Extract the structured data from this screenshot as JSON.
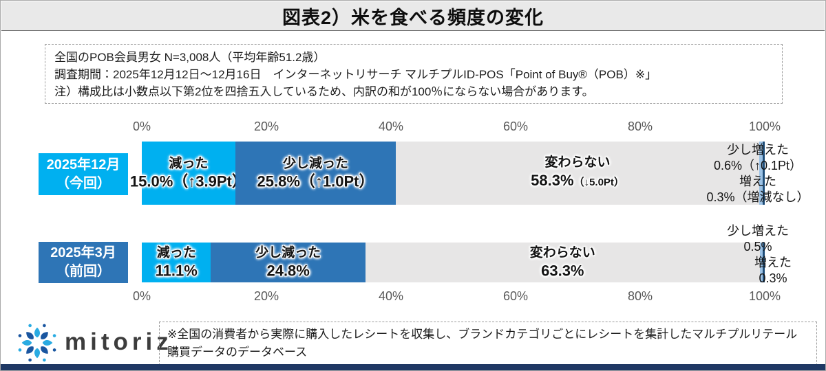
{
  "title": "図表2）米を食べる頻度の変化",
  "note_box": {
    "lines": [
      "全国のPOB会員男女 N=3,008人（平均年齢51.2歳）",
      "調査期間：2025年12月12日～12月16日　インターネットリサーチ マルチプルID-POS「Point of Buy®（POB）※」",
      "注）構成比は小数点以下第2位を四捨五入しているため、内訳の和が100％にならない場合があります。"
    ]
  },
  "chart_data": {
    "type": "bar",
    "stacked": true,
    "orientation": "horizontal",
    "title": "米を食べる頻度の変化",
    "xlim": [
      0,
      100
    ],
    "axis_ticks": [
      "0%",
      "20%",
      "40%",
      "60%",
      "80%",
      "100%"
    ],
    "categories": [
      "減った",
      "少し減った",
      "変わらない",
      "少し増えた",
      "増えた"
    ],
    "palette": {
      "減った": "#00B0F0",
      "少し減った": "#2E75B6",
      "変わらない": "#E7E6E6",
      "少し増えた": "#9DC3E6",
      "増えた": "#1F4E79"
    },
    "rows": [
      {
        "label_line1": "2025年12月",
        "label_line2": "（今回）",
        "label_box_color": "#00B0F0",
        "segments": [
          {
            "key": "hetta",
            "name": "減った",
            "value": 15.0,
            "value_text": "15.0%（↑3.9Pt）",
            "color": "#00B0F0",
            "label_in_bar": true
          },
          {
            "key": "sukoshi-hetta",
            "name": "少し減った",
            "value": 25.8,
            "value_text": "25.8%（↑1.0Pt）",
            "color": "#2E75B6",
            "label_in_bar": true
          },
          {
            "key": "kawaranai",
            "name": "変わらない",
            "value": 58.3,
            "value_text": "58.3%",
            "value_suffix_small": "（↓5.0Pt）",
            "color": "#E7E6E6",
            "label_in_bar": true
          },
          {
            "key": "sukoshi-fueta",
            "name": "少し増えた",
            "value": 0.6,
            "value_text": "0.6%（↑0.1Pt）",
            "color": "#9DC3E6",
            "label_in_bar": false
          },
          {
            "key": "fueta",
            "name": "増えた",
            "value": 0.3,
            "value_text": "0.3%（増減なし）",
            "color": "#1F4E79",
            "label_in_bar": false
          }
        ]
      },
      {
        "label_line1": "2025年3月",
        "label_line2": "（前回）",
        "label_box_color": "#2E75B6",
        "segments": [
          {
            "key": "hetta",
            "name": "減った",
            "value": 11.1,
            "value_text": "11.1%",
            "color": "#00B0F0",
            "label_in_bar": true
          },
          {
            "key": "sukoshi-hetta",
            "name": "少し減った",
            "value": 24.8,
            "value_text": "24.8%",
            "color": "#2E75B6",
            "label_in_bar": true
          },
          {
            "key": "kawaranai",
            "name": "変わらない",
            "value": 63.3,
            "value_text": "63.3%",
            "color": "#E7E6E6",
            "label_in_bar": true
          },
          {
            "key": "sukoshi-fueta",
            "name": "少し増えた",
            "value": 0.5,
            "value_text": "0.5%",
            "color": "#9DC3E6",
            "label_in_bar": false
          },
          {
            "key": "fueta",
            "name": "増えた",
            "value": 0.3,
            "value_text": "0.3%",
            "color": "#1F4E79",
            "label_in_bar": false
          }
        ]
      }
    ]
  },
  "footer": {
    "logo_text": "mitoriz",
    "note": "※全国の消費者から実際に購入したレシートを収集し、ブランドカテゴリごとにレシートを集計したマルチプルリテール購買データのデータベース"
  },
  "colors": {
    "accent_cyan": "#00B0F0",
    "accent_blue": "#2E75B6",
    "neutral_gray": "#E7E6E6",
    "light_blue": "#9DC3E6",
    "dark_navy": "#1F4E79",
    "bottom_strip": "#1F3864",
    "title_band": "#E9E9E9"
  }
}
